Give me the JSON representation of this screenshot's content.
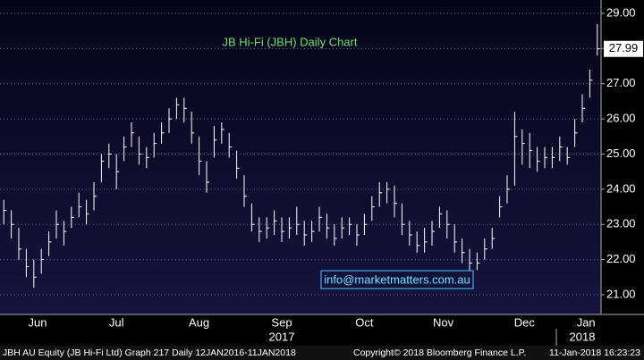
{
  "chart_data": {
    "type": "ohlc",
    "title": "JB Hi-Fi (JBH) Daily Chart",
    "annotation": "info@marketmatters.com.au",
    "color": "#ffffff",
    "close": [
      23.4,
      23.0,
      22.3,
      21.8,
      21.5,
      22.0,
      22.5,
      23.0,
      22.8,
      23.2,
      23.5,
      23.3,
      23.8,
      24.8,
      25.0,
      24.5,
      25.2,
      25.6,
      25.0,
      24.9,
      25.3,
      25.6,
      26.0,
      26.4,
      26.3,
      25.6,
      24.8,
      24.2,
      25.4,
      25.7,
      25.2,
      24.6,
      23.8,
      23.0,
      22.8,
      22.9,
      23.1,
      22.8,
      22.9,
      23.0,
      22.7,
      22.8,
      23.2,
      22.9,
      22.6,
      22.9,
      23.0,
      22.7,
      23.0,
      23.5,
      23.9,
      24.0,
      23.6,
      23.0,
      22.7,
      22.4,
      22.5,
      22.8,
      23.3,
      23.0,
      22.5,
      22.2,
      21.9,
      21.9,
      22.3,
      22.6,
      23.5,
      24.0,
      25.5,
      25.3,
      25.1,
      24.8,
      24.9,
      24.9,
      25.2,
      24.9,
      25.6,
      26.3,
      27.1,
      27.99
    ],
    "high": [
      23.7,
      23.4,
      22.9,
      22.3,
      22.0,
      22.3,
      22.8,
      23.4,
      23.1,
      23.5,
      23.9,
      23.7,
      24.2,
      25.0,
      25.3,
      25.0,
      25.5,
      25.9,
      25.5,
      25.2,
      25.6,
      25.9,
      26.3,
      26.6,
      26.6,
      26.2,
      25.5,
      24.8,
      25.8,
      25.9,
      25.6,
      25.1,
      24.4,
      23.6,
      23.2,
      23.2,
      23.4,
      23.2,
      23.2,
      23.5,
      23.1,
      23.1,
      23.5,
      23.3,
      23.0,
      23.2,
      23.2,
      23.0,
      23.3,
      23.8,
      24.2,
      24.2,
      24.1,
      23.6,
      23.1,
      22.8,
      22.9,
      23.1,
      23.5,
      23.4,
      23.0,
      22.6,
      22.3,
      22.2,
      22.6,
      22.9,
      23.8,
      24.4,
      26.2,
      25.7,
      25.6,
      25.2,
      25.2,
      25.2,
      25.5,
      25.2,
      26.0,
      26.7,
      27.4,
      28.7
    ],
    "low": [
      23.0,
      22.6,
      22.0,
      21.5,
      21.2,
      21.6,
      22.1,
      22.6,
      22.4,
      22.9,
      23.2,
      23.0,
      23.4,
      24.2,
      24.6,
      24.0,
      24.8,
      25.2,
      24.7,
      24.6,
      24.9,
      25.3,
      25.6,
      26.0,
      25.9,
      25.3,
      24.4,
      23.9,
      24.9,
      25.3,
      24.9,
      24.3,
      23.5,
      22.8,
      22.5,
      22.6,
      22.7,
      22.5,
      22.6,
      22.7,
      22.4,
      22.5,
      22.8,
      22.6,
      22.4,
      22.6,
      22.7,
      22.4,
      22.7,
      23.1,
      23.5,
      23.6,
      23.2,
      22.7,
      22.4,
      22.2,
      22.2,
      22.4,
      22.9,
      22.6,
      22.2,
      21.9,
      21.7,
      21.7,
      22.0,
      22.3,
      23.2,
      23.6,
      24.1,
      24.7,
      24.6,
      24.5,
      24.6,
      24.6,
      24.8,
      24.7,
      25.2,
      25.9,
      26.6,
      27.8
    ],
    "ylim": [
      20.44,
      29.38
    ],
    "yticks": [
      {
        "value": 21,
        "label": "21.00"
      },
      {
        "value": 22,
        "label": "22.00"
      },
      {
        "value": 23,
        "label": "23.00"
      },
      {
        "value": 24,
        "label": "24.00"
      },
      {
        "value": 25,
        "label": "25.00"
      },
      {
        "value": 26,
        "label": "26.00"
      },
      {
        "value": 27,
        "label": "27.00"
      },
      {
        "value": 28,
        "label": "28.00"
      },
      {
        "value": 29,
        "label": "29.00"
      }
    ],
    "xticks": [
      {
        "value": 4.5,
        "label": "Jun"
      },
      {
        "value": 15,
        "label": "Jul"
      },
      {
        "value": 26,
        "label": "Aug"
      },
      {
        "value": 37,
        "label": "Sep"
      },
      {
        "value": 48,
        "label": "Oct"
      },
      {
        "value": 58.5,
        "label": "Nov"
      },
      {
        "value": 69.3,
        "label": "Dec"
      },
      {
        "value": 77.5,
        "label": "Jan"
      }
    ],
    "years": [
      {
        "value": 37,
        "label": "2017"
      },
      {
        "value": 77,
        "label": "2018"
      }
    ],
    "grid": true,
    "footer": [
      "JBH AU Equity (JB Hi-Fi Ltd) Graph 217  Daily 12JAN2016-11JAN2018",
      "Copyright© 2018 Bloomberg Finance L.P.",
      "11-Jan-2018 16:23:23"
    ]
  }
}
